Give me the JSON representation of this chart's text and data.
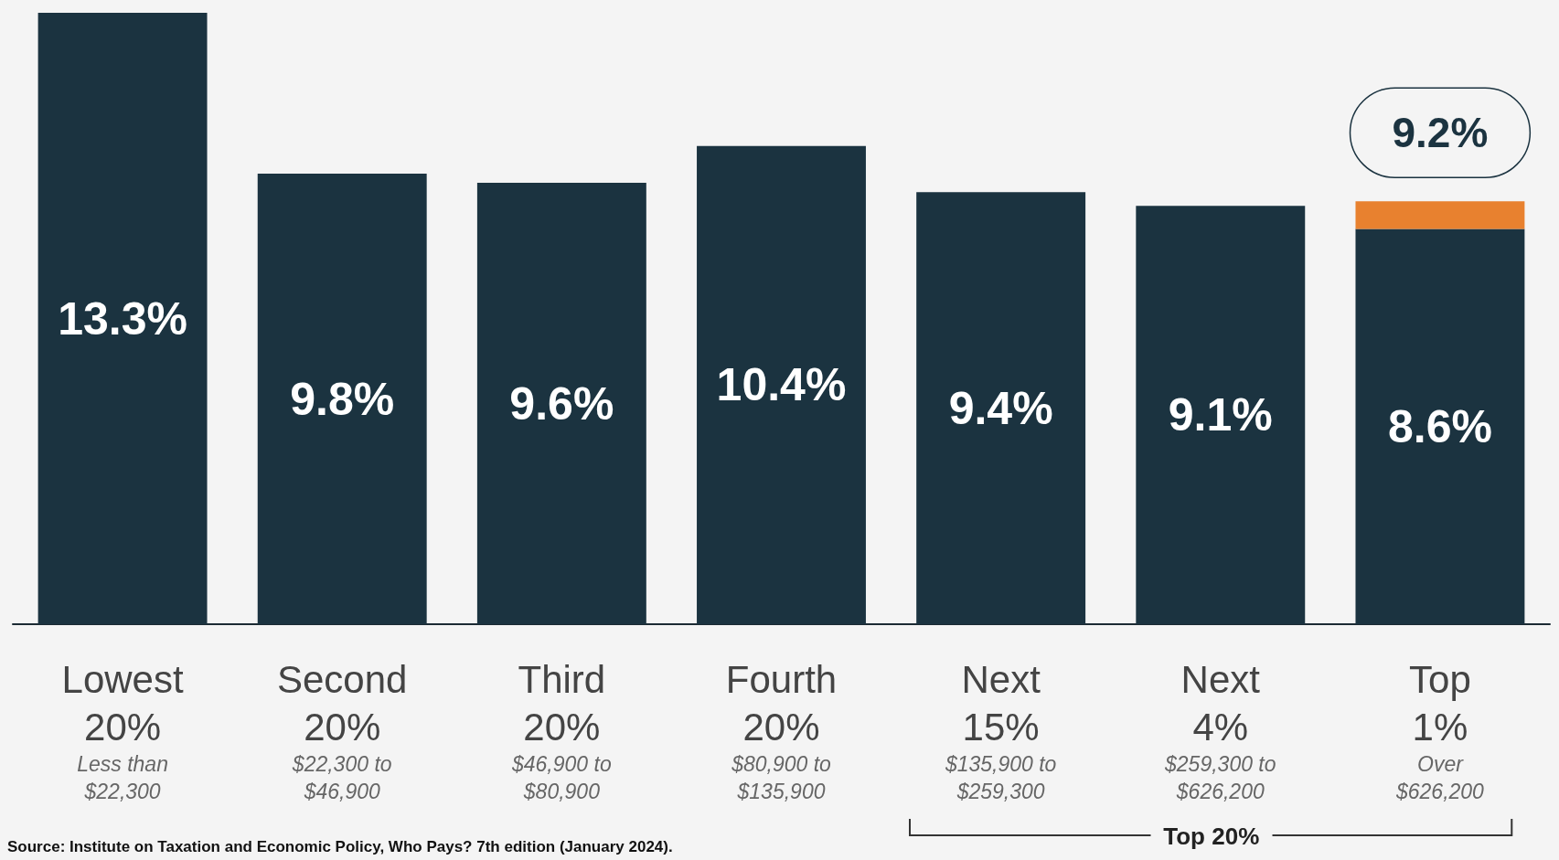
{
  "chart_data": {
    "type": "bar",
    "stacked": true,
    "categories": [
      "Lowest\n20%\nLess than\n$22,300",
      "Second\n20%\n$22,300 to\n$46,900",
      "Third\n20%\n$46,900 to\n$80,900",
      "Fourth\n20%\n$80,900 to\n$135,900",
      "Next\n15%\n$135,900 to\n$259,300",
      "Next\n4%\n$259,300 to\n$626,200",
      "Top\n1%\nOver\n$626,200"
    ],
    "series": [
      {
        "color": "#1b3340",
        "values": [
          13.3,
          9.8,
          9.6,
          10.4,
          9.4,
          9.1,
          8.6
        ],
        "value_labels": [
          "13.3%",
          "9.8%",
          "9.6%",
          "10.4%",
          "9.4%",
          "9.1%",
          "8.6%"
        ]
      },
      {
        "color": "#e8812f",
        "values": [
          null,
          null,
          null,
          null,
          null,
          null,
          0.6
        ]
      }
    ],
    "totals": [
      null,
      null,
      null,
      null,
      null,
      null,
      "9.2%"
    ],
    "annotations": [
      "Source: Institute on Taxation and Economic Policy, Who Pays? 7th edition (January 2024).",
      "Top 20%"
    ]
  }
}
